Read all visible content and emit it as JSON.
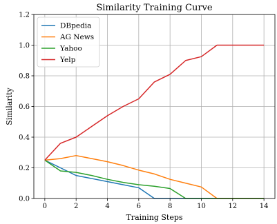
{
  "chart_data": {
    "type": "line",
    "title": "Similarity Training Curve",
    "xlabel": "Training Steps",
    "ylabel": "Similarity",
    "xlim": [
      -0.7,
      14.7
    ],
    "ylim": [
      0.0,
      1.2
    ],
    "xticks": [
      "0",
      "2",
      "4",
      "6",
      "8",
      "10",
      "12",
      "14"
    ],
    "yticks": [
      "0.0",
      "0.2",
      "0.4",
      "0.6",
      "0.8",
      "1.0",
      "1.2"
    ],
    "grid": true,
    "legend": "top-left",
    "x": [
      0,
      1,
      2,
      3,
      4,
      5,
      6,
      7,
      8,
      9,
      10,
      11,
      12,
      13,
      14
    ],
    "series": [
      {
        "name": "DBpedia",
        "color": "#1f77b4",
        "values": [
          0.25,
          0.2,
          0.15,
          0.13,
          0.11,
          0.09,
          0.07,
          0.0,
          0.0,
          0.0,
          0.0,
          0.0,
          0.0,
          0.0,
          0.0
        ]
      },
      {
        "name": "AG News",
        "color": "#ff7f0e",
        "values": [
          0.25,
          0.26,
          0.28,
          0.26,
          0.24,
          0.215,
          0.185,
          0.16,
          0.125,
          0.1,
          0.075,
          0.0,
          0.0,
          0.0,
          0.0
        ]
      },
      {
        "name": "Yahoo",
        "color": "#2ca02c",
        "values": [
          0.25,
          0.18,
          0.17,
          0.15,
          0.125,
          0.105,
          0.09,
          0.08,
          0.065,
          0.0,
          0.0,
          0.0,
          0.0,
          0.0,
          0.0
        ]
      },
      {
        "name": "Yelp",
        "color": "#d62728",
        "values": [
          0.25,
          0.36,
          0.4,
          0.47,
          0.54,
          0.6,
          0.65,
          0.76,
          0.81,
          0.9,
          0.925,
          1.0,
          1.0,
          1.0,
          1.0
        ]
      }
    ]
  }
}
